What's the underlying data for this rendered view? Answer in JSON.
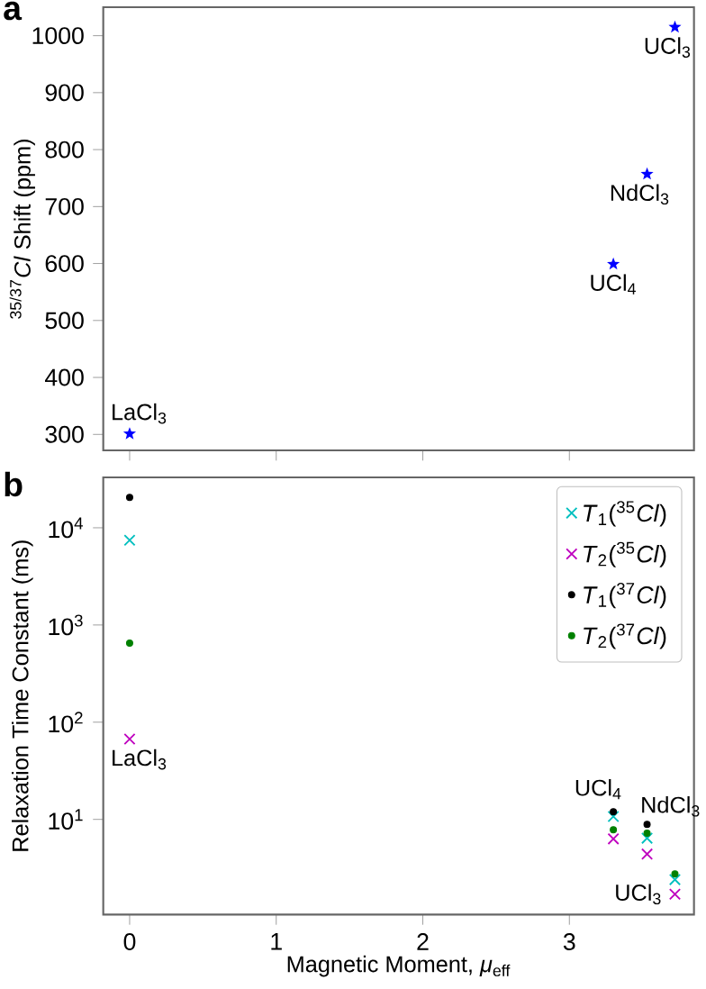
{
  "chart_data": [
    {
      "type": "scatter",
      "title": "a",
      "ylabel": "$^{35/37}$*Cl* Shift (ppm)",
      "x": [
        0,
        3.3,
        3.53,
        3.72
      ],
      "values": [
        301,
        599,
        757,
        1015
      ],
      "color": "#0000ff",
      "marker": "star",
      "xlim": [
        -0.18,
        3.85
      ],
      "xticks": [
        0,
        1,
        2,
        3
      ],
      "ylim": [
        272,
        1050
      ],
      "yticks": [
        300,
        400,
        500,
        600,
        700,
        800,
        900,
        1000
      ],
      "tick_labels": "y",
      "grid": false,
      "annotations": [
        {
          "text": "LaCl$_{3}$",
          "x": 0,
          "y": 301
        },
        {
          "text": "UCl$_{4}$",
          "x": 3.3,
          "y": 599
        },
        {
          "text": "NdCl$_{3}$",
          "x": 3.53,
          "y": 757
        },
        {
          "text": "UCl$_{3}$",
          "x": 3.72,
          "y": 1015
        }
      ]
    },
    {
      "type": "scatter",
      "title": "b",
      "xlabel": "Magnetic Moment, *μ*$_{eff}$",
      "ylabel": "Relaxation Time Constant (ms)",
      "x": [
        0,
        3.3,
        3.53,
        3.72
      ],
      "log": "y",
      "series": [
        {
          "name": "*T*$_{1}$($^{35}$*Cl*)",
          "color": "#00bfbf",
          "marker": "cross",
          "values": [
            7450,
            10.7,
            6.4,
            2.4
          ]
        },
        {
          "name": "*T*$_{2}$($^{35}$*Cl*)",
          "color": "#bf00bf",
          "marker": "cross",
          "values": [
            67,
            6.3,
            4.4,
            1.7
          ]
        },
        {
          "name": "*T*$_{1}$($^{37}$*Cl*)",
          "color": "#000000",
          "marker": "circle",
          "values": [
            20500,
            12,
            8.9,
            null
          ]
        },
        {
          "name": "*T*$_{2}$($^{37}$*Cl*)",
          "color": "#008000",
          "marker": "circle",
          "values": [
            650,
            7.8,
            7.2,
            2.75
          ]
        }
      ],
      "xlim": [
        -0.18,
        3.85
      ],
      "xticks": [
        0,
        1,
        2,
        3
      ],
      "ylim": [
        1.05,
        33000
      ],
      "yticks": [
        {
          "value": 10,
          "label": "10$^{1}$"
        },
        {
          "value": 100,
          "label": "10$^{2}$"
        },
        {
          "value": 1000,
          "label": "10$^{3}$"
        },
        {
          "value": 10000,
          "label": "10$^{4}$"
        }
      ],
      "grid": false,
      "legend": "top right",
      "annotations": [
        {
          "text": "LaCl$_{3}$",
          "x": 0,
          "y": 67
        },
        {
          "text": "UCl$_{4}$",
          "x": 3.3,
          "y": 12
        },
        {
          "text": "NdCl$_{3}$",
          "x": 3.53,
          "y": 8.9
        },
        {
          "text": "UCl$_{3}$",
          "x": 3.72,
          "y": 1.7
        }
      ]
    }
  ]
}
